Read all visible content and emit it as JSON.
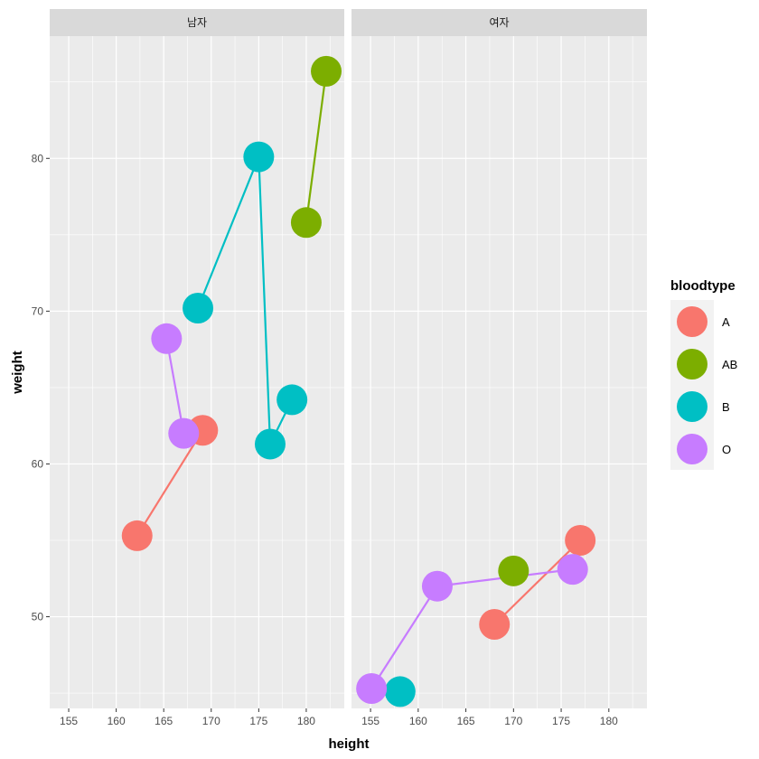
{
  "chart_data": {
    "type": "line",
    "facets": [
      "남자",
      "여자"
    ],
    "xlabel": "height",
    "ylabel": "weight",
    "xlim": [
      153,
      184
    ],
    "ylim": [
      44,
      88
    ],
    "x_ticks": [
      155,
      160,
      165,
      170,
      175,
      180
    ],
    "y_ticks": [
      50,
      60,
      70,
      80
    ],
    "grid": true,
    "legend": {
      "title": "bloodtype",
      "position": "right",
      "entries": [
        "A",
        "AB",
        "B",
        "O"
      ]
    },
    "colors": {
      "A": "#F8766D",
      "AB": "#7CAE00",
      "B": "#00BFC4",
      "O": "#C77CFF",
      "panel_bg": "#EBEBEB",
      "strip_bg": "#D9D9D9",
      "grid": "#FFFFFF"
    },
    "series": [
      {
        "facet": "남자",
        "name": "A",
        "points": [
          {
            "x": 162.2,
            "y": 55.3
          },
          {
            "x": 169.1,
            "y": 62.2
          }
        ]
      },
      {
        "facet": "남자",
        "name": "AB",
        "points": [
          {
            "x": 180.0,
            "y": 75.8
          },
          {
            "x": 182.1,
            "y": 85.7
          }
        ]
      },
      {
        "facet": "남자",
        "name": "B",
        "points": [
          {
            "x": 168.6,
            "y": 70.2
          },
          {
            "x": 175.0,
            "y": 80.1
          },
          {
            "x": 176.2,
            "y": 61.3
          },
          {
            "x": 178.5,
            "y": 64.2
          }
        ]
      },
      {
        "facet": "남자",
        "name": "O",
        "points": [
          {
            "x": 165.3,
            "y": 68.2
          },
          {
            "x": 167.1,
            "y": 62.0
          }
        ]
      },
      {
        "facet": "여자",
        "name": "A",
        "points": [
          {
            "x": 168.0,
            "y": 49.5
          },
          {
            "x": 177.0,
            "y": 55.0
          }
        ]
      },
      {
        "facet": "여자",
        "name": "AB",
        "points": [
          {
            "x": 170.0,
            "y": 53.0
          }
        ]
      },
      {
        "facet": "여자",
        "name": "B",
        "points": [
          {
            "x": 158.1,
            "y": 45.1
          }
        ]
      },
      {
        "facet": "여자",
        "name": "O",
        "points": [
          {
            "x": 155.1,
            "y": 45.3
          },
          {
            "x": 162.0,
            "y": 52.0
          },
          {
            "x": 176.2,
            "y": 53.1
          }
        ]
      }
    ]
  }
}
